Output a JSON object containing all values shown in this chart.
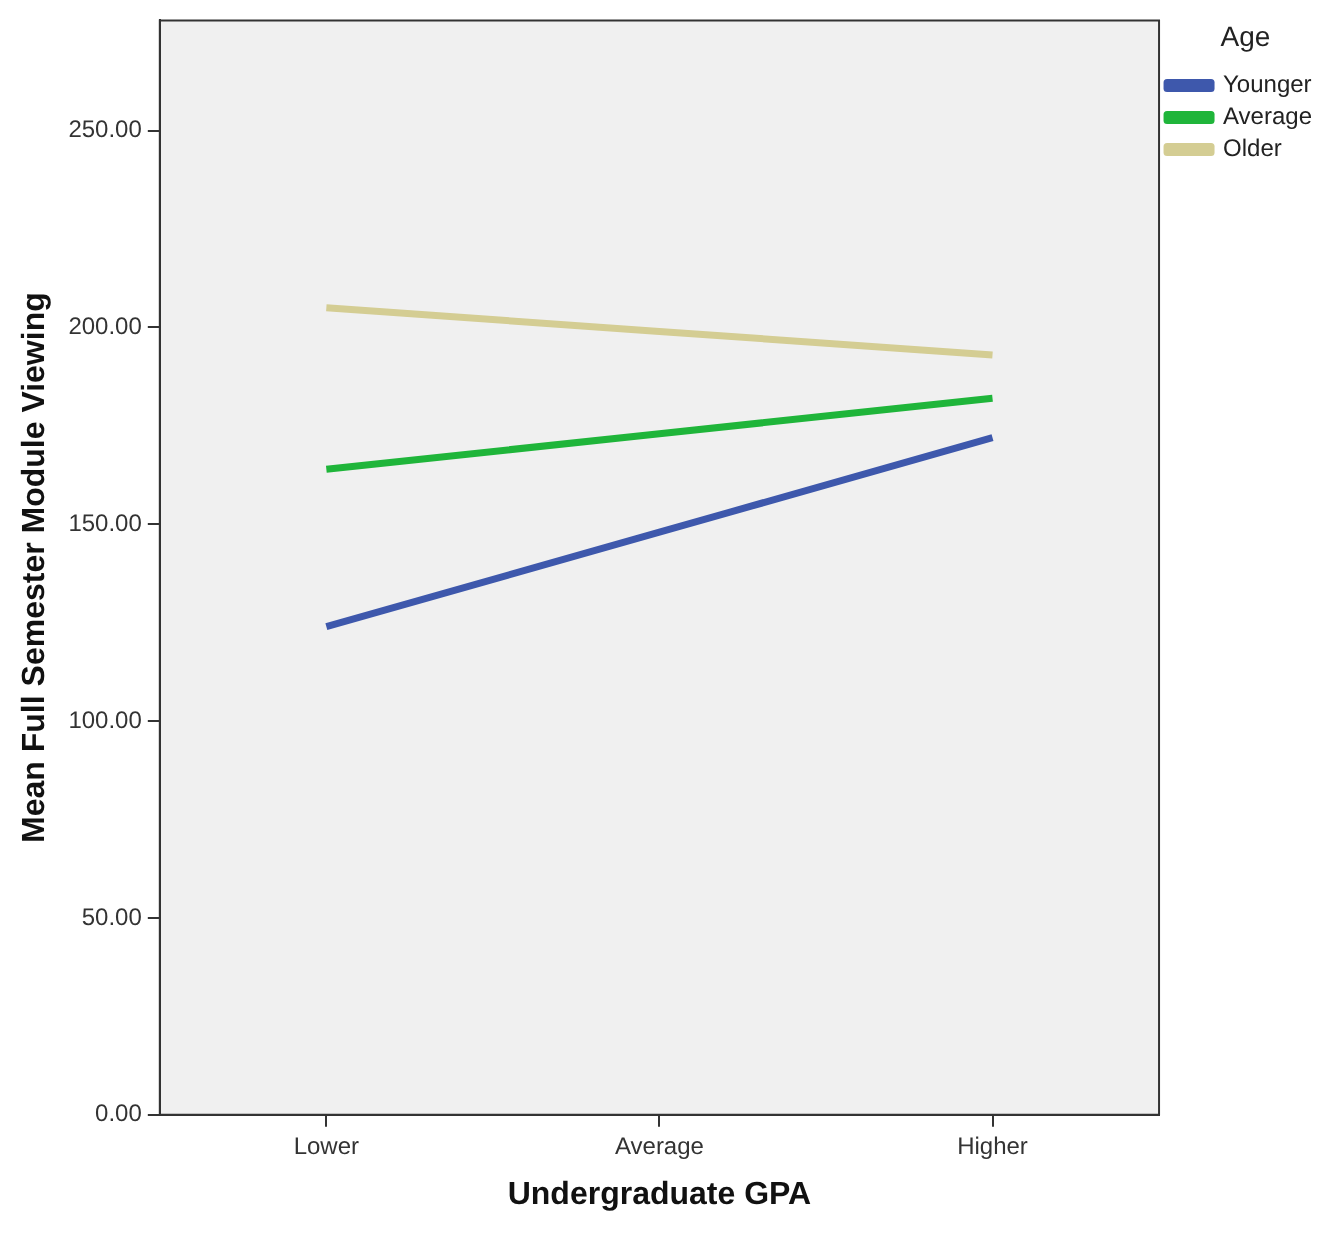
{
  "chart_data": {
    "type": "line",
    "xlabel": "Undergraduate GPA",
    "ylabel": "Mean Full Semester Module Viewing",
    "legend_title": "Age",
    "legend": "top right",
    "grid": false,
    "marker": "none",
    "categories": [
      "Lower",
      "Average",
      "Higher"
    ],
    "series": [
      {
        "name": "Younger",
        "color": "#3e58ac",
        "values": [
          124,
          148,
          172
        ]
      },
      {
        "name": "Average",
        "color": "#1fb53a",
        "values": [
          164,
          173,
          182
        ]
      },
      {
        "name": "Older",
        "color": "#d4cd93",
        "values": [
          205,
          199,
          193
        ]
      }
    ],
    "ylim": [
      0,
      278
    ],
    "yticks": [
      {
        "value": 0,
        "label": "0.00"
      },
      {
        "value": 50,
        "label": "50.00"
      },
      {
        "value": 100,
        "label": "100.00"
      },
      {
        "value": 150,
        "label": "150.00"
      },
      {
        "value": 200,
        "label": "200.00"
      },
      {
        "value": 250,
        "label": "250.00"
      }
    ]
  }
}
